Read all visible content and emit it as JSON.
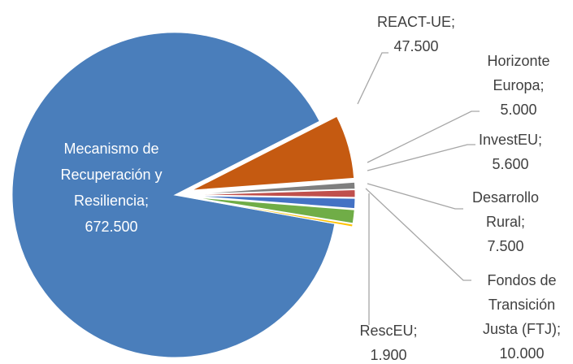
{
  "chart_data": {
    "type": "pie",
    "categories": [
      "REACT-UE",
      "Horizonte Europa",
      "InvestEU",
      "Desarrollo Rural",
      "Fondos de Transición Justa (FTJ)",
      "RescEU",
      "Mecanismo de Recuperación y Resiliencia"
    ],
    "values": [
      47500,
      5000,
      5600,
      7500,
      10000,
      1900,
      672500
    ],
    "value_labels": [
      "47.500",
      "5.000",
      "5.600",
      "7.500",
      "10.000",
      "1.900",
      "672.500"
    ],
    "colors": [
      "#c55a11",
      "#7f7f7f",
      "#c0504d",
      "#4472c4",
      "#70ad47",
      "#ffc000",
      "#4a7ebb"
    ],
    "label_separator": ";"
  }
}
